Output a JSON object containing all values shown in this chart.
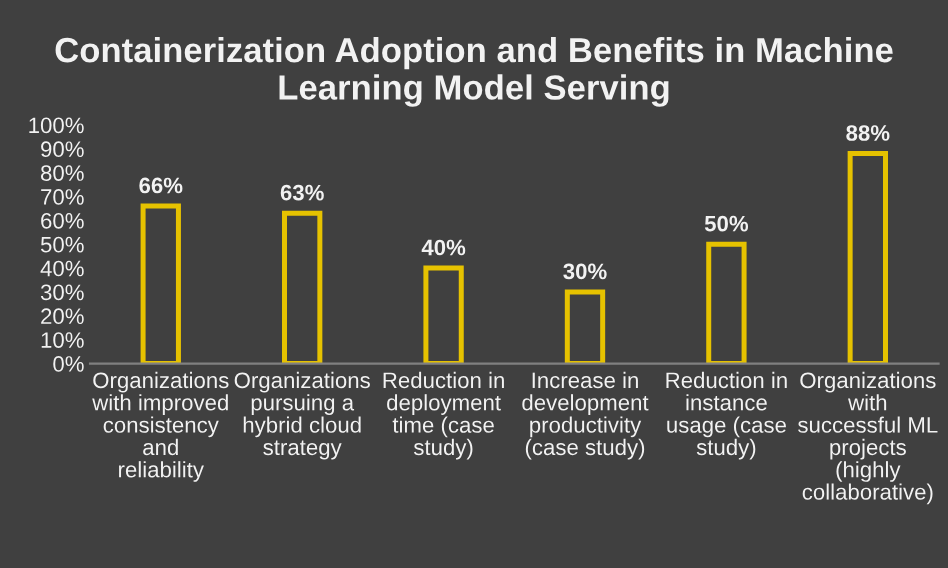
{
  "chart_data": {
    "type": "bar",
    "title": "Containerization Adoption and Benefits in Machine Learning Model Serving",
    "categories": [
      "Organizations with improved consistency and reliability",
      "Organizations pursuing a hybrid cloud strategy",
      "Reduction in deployment time (case study)",
      "Increase in development productivity (case study)",
      "Reduction in instance usage (case study)",
      "Organizations with successful ML projects (highly collaborative)"
    ],
    "values": [
      66,
      63,
      40,
      30,
      50,
      88
    ],
    "value_labels": [
      "66%",
      "63%",
      "40%",
      "30%",
      "50%",
      "88%"
    ],
    "color": "#e6c200",
    "ylim": [
      0,
      100
    ],
    "yticks": [
      {
        "value": 0,
        "label": "0%"
      },
      {
        "value": 10,
        "label": "10%"
      },
      {
        "value": 20,
        "label": "20%"
      },
      {
        "value": 30,
        "label": "30%"
      },
      {
        "value": 40,
        "label": "40%"
      },
      {
        "value": 50,
        "label": "50%"
      },
      {
        "value": 60,
        "label": "60%"
      },
      {
        "value": 70,
        "label": "70%"
      },
      {
        "value": 80,
        "label": "80%"
      },
      {
        "value": 90,
        "label": "90%"
      },
      {
        "value": 100,
        "label": "100%"
      }
    ],
    "grid": false,
    "legend": false
  }
}
